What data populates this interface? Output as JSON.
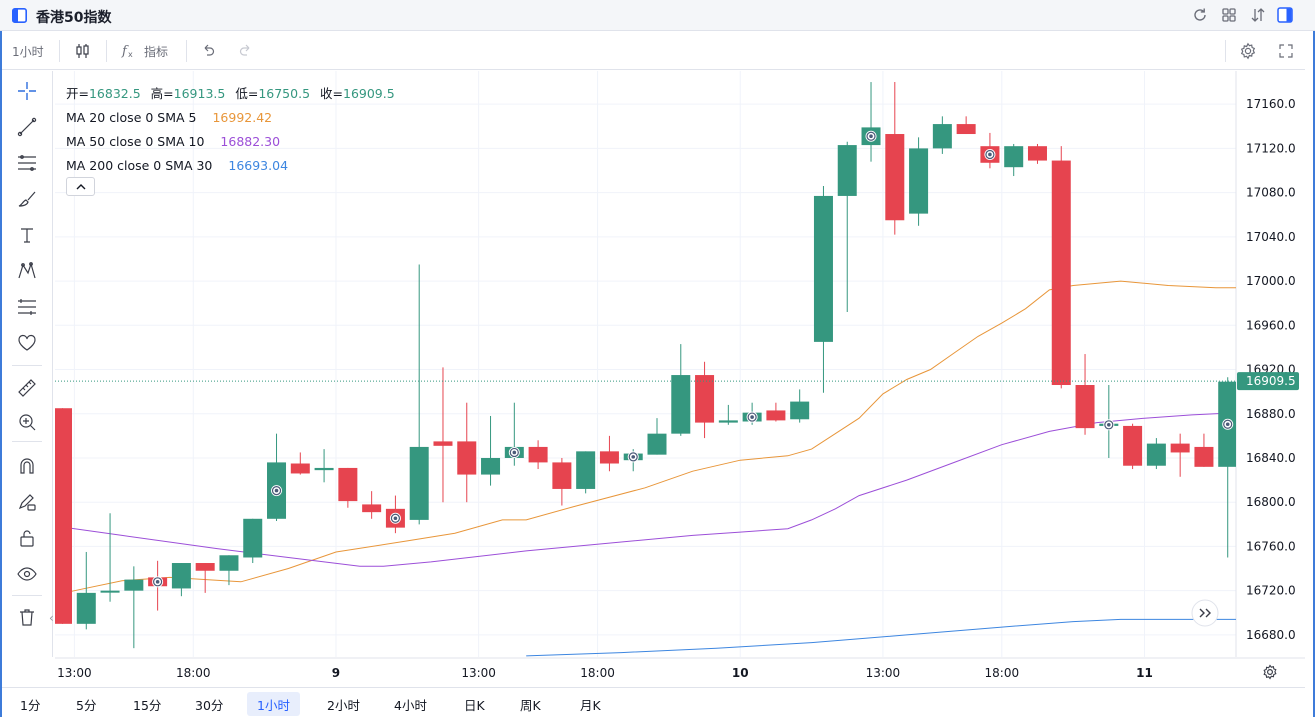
{
  "window": {
    "title": "香港50指数"
  },
  "toolbar": {
    "interval": "1小时",
    "indicators_label": "指标"
  },
  "legend": {
    "ohlc": [
      {
        "label": "开=",
        "value": "16832.5"
      },
      {
        "label": "高=",
        "value": "16913.5"
      },
      {
        "label": "低=",
        "value": "16750.5"
      },
      {
        "label": "收=",
        "value": "16909.5"
      }
    ],
    "ma": [
      {
        "label": "MA 20 close 0 SMA 5",
        "value": "16992.42",
        "color": "#e8963a"
      },
      {
        "label": "MA 50 close 0 SMA 10",
        "value": "16882.30",
        "color": "#9c4fd8"
      },
      {
        "label": "MA 200 close 0 SMA 30",
        "value": "16693.04",
        "color": "#3d86e0"
      }
    ]
  },
  "timeframes": [
    "1分",
    "5分",
    "15分",
    "30分",
    "1小时",
    "2小时",
    "4小时",
    "日K",
    "周K",
    "月K"
  ],
  "active_timeframe": "1小时",
  "colors": {
    "up": "#35977f",
    "down": "#e6444f",
    "last_price_bg": "#35977f"
  },
  "chart_data": {
    "type": "candlestick",
    "title": "香港50指数",
    "interval": "1小时",
    "ylim": [
      16660,
      17190
    ],
    "y_ticks": [
      "16680.0",
      "16720.0",
      "16760.0",
      "16800.0",
      "16840.0",
      "16880.0",
      "16920.0",
      "16960.0",
      "17000.0",
      "17040.0",
      "17080.0",
      "17120.0",
      "17160.0"
    ],
    "y_tick_values": [
      16680,
      16720,
      16760,
      16800,
      16840,
      16880,
      16920,
      16960,
      17000,
      17040,
      17080,
      17120,
      17160
    ],
    "x_ticks": [
      {
        "label": "13:00",
        "index": 0.5,
        "bold": false
      },
      {
        "label": "18:00",
        "index": 5.5,
        "bold": false
      },
      {
        "label": "9",
        "index": 11.5,
        "bold": true
      },
      {
        "label": "13:00",
        "index": 17.5,
        "bold": false
      },
      {
        "label": "18:00",
        "index": 22.5,
        "bold": false
      },
      {
        "label": "10",
        "index": 28.5,
        "bold": true
      },
      {
        "label": "13:00",
        "index": 34.5,
        "bold": false
      },
      {
        "label": "18:00",
        "index": 39.5,
        "bold": false
      },
      {
        "label": "11",
        "index": 45.5,
        "bold": true
      }
    ],
    "last_price": "16909.5",
    "candles": [
      {
        "o": 16885,
        "h": 16885,
        "l": 16690,
        "c": 16690
      },
      {
        "o": 16690,
        "h": 16755,
        "l": 16685,
        "c": 16718
      },
      {
        "o": 16720,
        "h": 16790,
        "l": 16710,
        "c": 16720
      },
      {
        "o": 16720,
        "h": 16742,
        "l": 16668,
        "c": 16730
      },
      {
        "o": 16732,
        "h": 16747,
        "l": 16702,
        "c": 16724,
        "marker": true
      },
      {
        "o": 16722,
        "h": 16745,
        "l": 16715,
        "c": 16745
      },
      {
        "o": 16745,
        "h": 16745,
        "l": 16718,
        "c": 16738
      },
      {
        "o": 16738,
        "h": 16752,
        "l": 16725,
        "c": 16752
      },
      {
        "o": 16750,
        "h": 16785,
        "l": 16745,
        "c": 16785
      },
      {
        "o": 16785,
        "h": 16862,
        "l": 16783,
        "c": 16836,
        "marker": true
      },
      {
        "o": 16835,
        "h": 16845,
        "l": 16825,
        "c": 16826
      },
      {
        "o": 16829,
        "h": 16848,
        "l": 16818,
        "c": 16831
      },
      {
        "o": 16831,
        "h": 16831,
        "l": 16795,
        "c": 16801
      },
      {
        "o": 16798,
        "h": 16810,
        "l": 16785,
        "c": 16791
      },
      {
        "o": 16794,
        "h": 16806,
        "l": 16772,
        "c": 16777,
        "marker": true
      },
      {
        "o": 16784,
        "h": 17015,
        "l": 16780,
        "c": 16850
      },
      {
        "o": 16855,
        "h": 16922,
        "l": 16800,
        "c": 16851
      },
      {
        "o": 16855,
        "h": 16890,
        "l": 16800,
        "c": 16825
      },
      {
        "o": 16825,
        "h": 16878,
        "l": 16815,
        "c": 16840
      },
      {
        "o": 16840,
        "h": 16890,
        "l": 16833,
        "c": 16850,
        "marker": true
      },
      {
        "o": 16850,
        "h": 16856,
        "l": 16830,
        "c": 16836
      },
      {
        "o": 16836,
        "h": 16840,
        "l": 16797,
        "c": 16812
      },
      {
        "o": 16812,
        "h": 16846,
        "l": 16808,
        "c": 16846
      },
      {
        "o": 16846,
        "h": 16860,
        "l": 16828,
        "c": 16835
      },
      {
        "o": 16838,
        "h": 16848,
        "l": 16828,
        "c": 16844,
        "marker": true
      },
      {
        "o": 16843,
        "h": 16876,
        "l": 16843,
        "c": 16862
      },
      {
        "o": 16862,
        "h": 16943,
        "l": 16860,
        "c": 16915
      },
      {
        "o": 16915,
        "h": 16927,
        "l": 16858,
        "c": 16872
      },
      {
        "o": 16872,
        "h": 16888,
        "l": 16870,
        "c": 16874
      },
      {
        "o": 16873,
        "h": 16890,
        "l": 16870,
        "c": 16881,
        "marker": true
      },
      {
        "o": 16883,
        "h": 16890,
        "l": 16873,
        "c": 16874
      },
      {
        "o": 16875,
        "h": 16902,
        "l": 16872,
        "c": 16891
      },
      {
        "o": 16945,
        "h": 17086,
        "l": 16899,
        "c": 17077
      },
      {
        "o": 17077,
        "h": 17126,
        "l": 16972,
        "c": 17123
      },
      {
        "o": 17123,
        "h": 17180,
        "l": 17108,
        "c": 17139,
        "marker": true
      },
      {
        "o": 17133,
        "h": 17180,
        "l": 17042,
        "c": 17055
      },
      {
        "o": 17061,
        "h": 17130,
        "l": 17050,
        "c": 17120
      },
      {
        "o": 17120,
        "h": 17149,
        "l": 17115,
        "c": 17142
      },
      {
        "o": 17142,
        "h": 17149,
        "l": 17133,
        "c": 17133
      },
      {
        "o": 17122,
        "h": 17134,
        "l": 17102,
        "c": 17107,
        "marker": true
      },
      {
        "o": 17103,
        "h": 17124,
        "l": 17095,
        "c": 17122
      },
      {
        "o": 17122,
        "h": 17124,
        "l": 17106,
        "c": 17109
      },
      {
        "o": 17109,
        "h": 17122,
        "l": 16903,
        "c": 16906
      },
      {
        "o": 16906,
        "h": 16934,
        "l": 16861,
        "c": 16867
      },
      {
        "o": 16869,
        "h": 16906,
        "l": 16840,
        "c": 16871,
        "marker": true
      },
      {
        "o": 16869,
        "h": 16871,
        "l": 16830,
        "c": 16833
      },
      {
        "o": 16833,
        "h": 16858,
        "l": 16830,
        "c": 16853
      },
      {
        "o": 16853,
        "h": 16862,
        "l": 16823,
        "c": 16845
      },
      {
        "o": 16850,
        "h": 16862,
        "l": 16832,
        "c": 16832
      },
      {
        "o": 16832,
        "h": 16913,
        "l": 16750,
        "c": 16909,
        "marker": true
      }
    ],
    "series": [
      {
        "name": "MA 20 close 0 SMA 5",
        "color": "#e8963a",
        "points": [
          [
            -1.5,
            16710
          ],
          [
            0.5,
            16720
          ],
          [
            2.5,
            16729
          ],
          [
            4.5,
            16732
          ],
          [
            7.5,
            16728
          ],
          [
            9.5,
            16740
          ],
          [
            11.5,
            16755
          ],
          [
            14.5,
            16765
          ],
          [
            16.5,
            16772
          ],
          [
            18.5,
            16784
          ],
          [
            19.5,
            16784
          ],
          [
            21.5,
            16796
          ],
          [
            24.5,
            16813
          ],
          [
            26.5,
            16828
          ],
          [
            28.5,
            16838
          ],
          [
            30.5,
            16842
          ],
          [
            31.5,
            16848
          ],
          [
            33.5,
            16876
          ],
          [
            34.5,
            16898
          ],
          [
            35.5,
            16911
          ],
          [
            36.5,
            16920
          ],
          [
            37.5,
            16935
          ],
          [
            38.5,
            16950
          ],
          [
            39.5,
            16962
          ],
          [
            40.5,
            16975
          ],
          [
            41.5,
            16992
          ],
          [
            42.5,
            16996
          ],
          [
            44.5,
            17000
          ],
          [
            46.5,
            16996
          ],
          [
            48.5,
            16994
          ],
          [
            49.5,
            16994
          ]
        ]
      },
      {
        "name": "MA 50 close 0 SMA 10",
        "color": "#9c4fd8",
        "points": [
          [
            -1.5,
            16782
          ],
          [
            2.5,
            16770
          ],
          [
            6.5,
            16758
          ],
          [
            9.5,
            16750
          ],
          [
            12.5,
            16742
          ],
          [
            13.5,
            16742
          ],
          [
            15.5,
            16746
          ],
          [
            19.5,
            16756
          ],
          [
            23.5,
            16764
          ],
          [
            26.5,
            16770
          ],
          [
            28.5,
            16773
          ],
          [
            30.5,
            16776
          ],
          [
            31.5,
            16784
          ],
          [
            32.5,
            16794
          ],
          [
            33.5,
            16806
          ],
          [
            35.5,
            16820
          ],
          [
            37.5,
            16836
          ],
          [
            39.5,
            16852
          ],
          [
            41.5,
            16864
          ],
          [
            43.5,
            16872
          ],
          [
            45.5,
            16876
          ],
          [
            47.5,
            16879
          ],
          [
            49.5,
            16881
          ]
        ]
      },
      {
        "name": "MA 200 close 0 SMA 30",
        "color": "#3d86e0",
        "points": [
          [
            19.5,
            16661
          ],
          [
            23.5,
            16664
          ],
          [
            27.5,
            16668
          ],
          [
            31.5,
            16673
          ],
          [
            35.5,
            16680
          ],
          [
            39.5,
            16687
          ],
          [
            42.5,
            16692
          ],
          [
            44.5,
            16694
          ],
          [
            46.5,
            16694
          ],
          [
            48.5,
            16694
          ],
          [
            49.5,
            16694
          ]
        ]
      }
    ]
  }
}
